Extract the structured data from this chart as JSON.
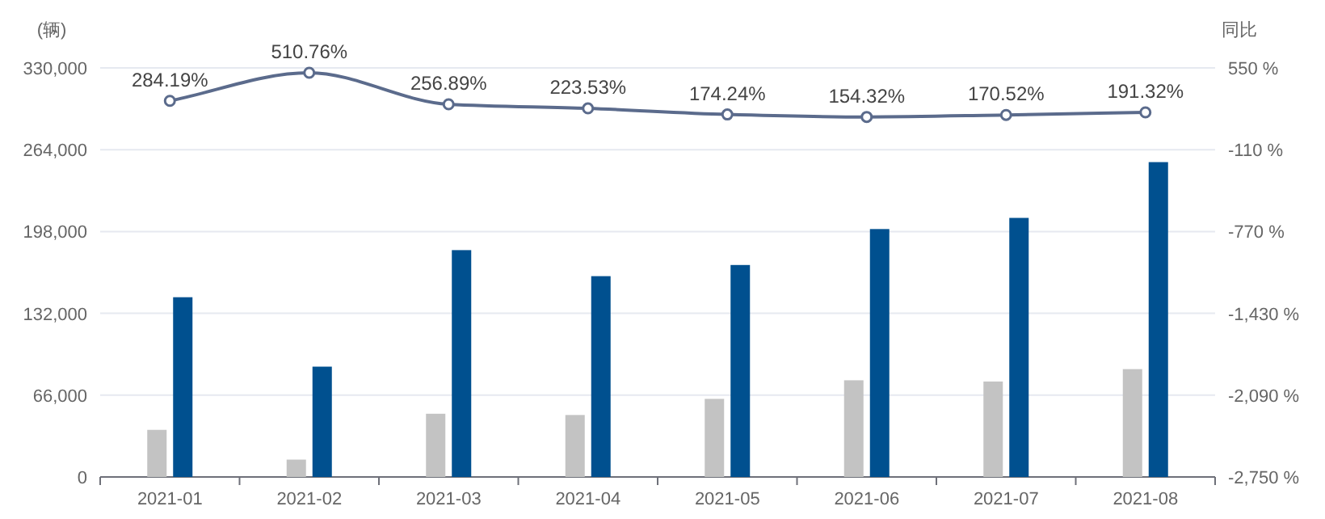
{
  "chart_data": {
    "type": "bar",
    "ylabel": "(辆)",
    "y2label": "同比",
    "categories": [
      "2021-01",
      "2021-02",
      "2021-03",
      "2021-04",
      "2021-05",
      "2021-06",
      "2021-07",
      "2021-08"
    ],
    "series": [
      {
        "color": "#c3c3c3",
        "values": [
          38000,
          14000,
          51000,
          50000,
          63000,
          78000,
          77000,
          87000
        ]
      },
      {
        "color": "#00508f",
        "values": [
          145000,
          89000,
          183000,
          162000,
          171000,
          200000,
          209000,
          254000
        ]
      },
      {
        "type": "line",
        "axis": "y2",
        "color": "#5b6b8c",
        "values": [
          284.19,
          510.76,
          256.89,
          223.53,
          174.24,
          154.32,
          170.52,
          191.32
        ],
        "value_labels": [
          "284.19%",
          "510.76%",
          "256.89%",
          "223.53%",
          "174.24%",
          "154.32%",
          "170.52%",
          "191.32%"
        ]
      }
    ],
    "ylim": [
      0,
      330000
    ],
    "yticks": [
      {
        "value": 0,
        "label": "0"
      },
      {
        "value": 66000,
        "label": "66,000"
      },
      {
        "value": 132000,
        "label": "132,000"
      },
      {
        "value": 198000,
        "label": "198,000"
      },
      {
        "value": 264000,
        "label": "264,000"
      },
      {
        "value": 330000,
        "label": "330,000"
      }
    ],
    "y2lim": [
      -2750,
      550
    ],
    "y2ticks": [
      {
        "value": -2750,
        "label": "-2,750 %"
      },
      {
        "value": -2090,
        "label": "-2,090 %"
      },
      {
        "value": -1430,
        "label": "-1,430 %"
      },
      {
        "value": -770,
        "label": "-770 %"
      },
      {
        "value": -110,
        "label": "-110 %"
      },
      {
        "value": 550,
        "label": "550 %"
      }
    ],
    "grid": "y",
    "marker": "circle"
  }
}
